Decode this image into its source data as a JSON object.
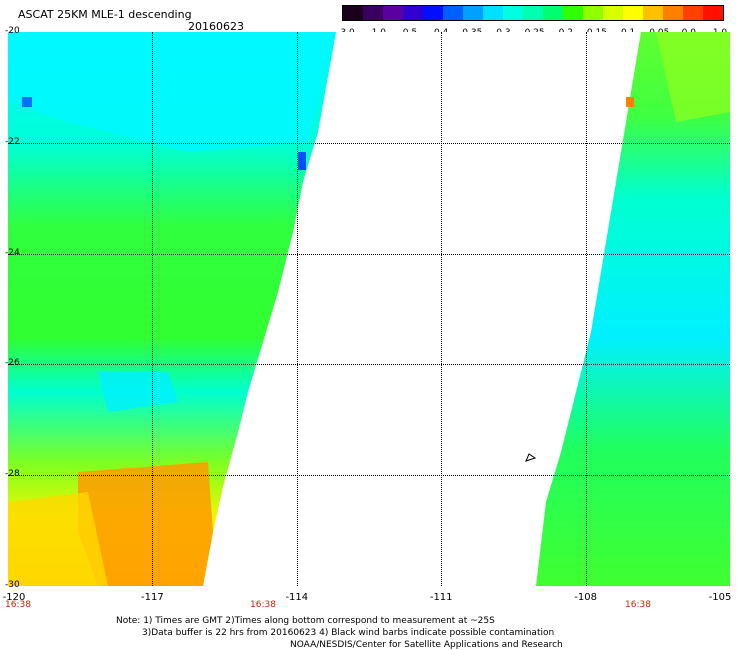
{
  "header": {
    "title": "ASCAT 25KM MLE-1 descending",
    "date": "20160623"
  },
  "colorbar": {
    "ticks": [
      "-3.0",
      "-1.0",
      "-0.5",
      "-0.4",
      "-0.35",
      "-0.3",
      "-0.25",
      "-0.2",
      "-0.15",
      "-0.1",
      "-0.05",
      "0.0",
      "1.0"
    ],
    "colors": [
      "#1a001a",
      "#3a0060",
      "#5a00a0",
      "#3000d0",
      "#0010ff",
      "#0060ff",
      "#00a0ff",
      "#00e0ff",
      "#00ffe0",
      "#00ffb0",
      "#00ff70",
      "#30ff00",
      "#90ff00",
      "#d8ff00",
      "#ffff00",
      "#ffc000",
      "#ff8000",
      "#ff4000",
      "#ff1000"
    ]
  },
  "map": {
    "lat_labels": [
      "-20",
      "-22",
      "-24",
      "-26",
      "-28",
      "-30"
    ],
    "lon_labels": [
      "-120",
      "-117",
      "-114",
      "-111",
      "-108",
      "-105"
    ],
    "time_labels": [
      "16:38",
      "16:38",
      "16:38"
    ],
    "swath_colors": {
      "cyan": "#00ffe0",
      "light_cyan": "#00f8ff",
      "green": "#30ff30",
      "yellow": "#f8f800",
      "orange": "#ff9000",
      "blue": "#0070ff"
    }
  },
  "notes": {
    "line1": "Note: 1) Times are GMT 2)Times along bottom correspond to measurement at ~25S",
    "line2": "3)Data buffer is 22 hrs from 20160623 4) Black wind barbs indicate possible contamination",
    "line3": "NOAA/NESDIS/Center for Satellite Applications and Research"
  }
}
